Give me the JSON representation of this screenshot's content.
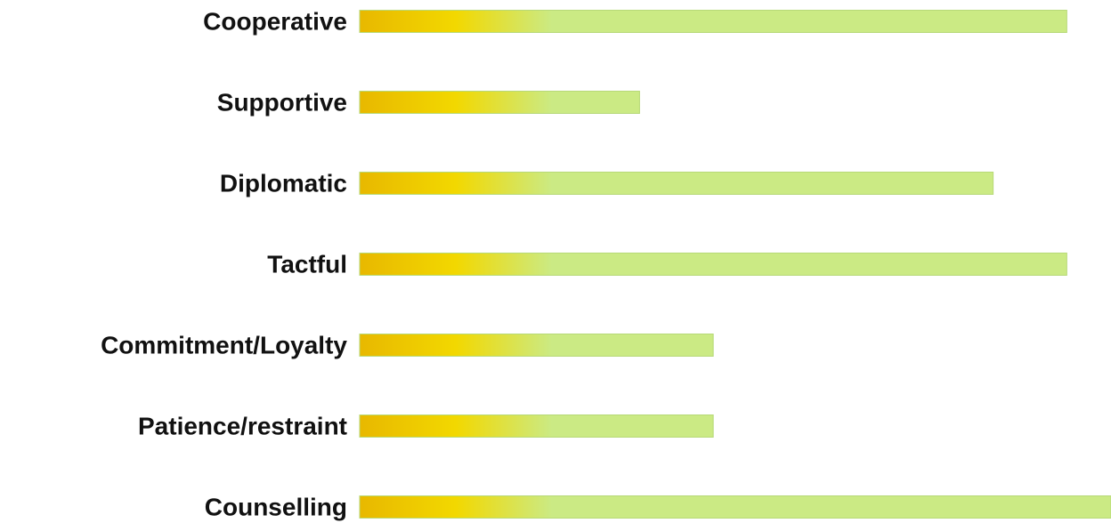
{
  "chart_data": {
    "type": "bar",
    "orientation": "horizontal",
    "categories": [
      "Cooperative",
      "Supportive",
      "Diplomatic",
      "Tactful",
      "Commitment/Loyalty",
      "Patience/restraint",
      "Counselling"
    ],
    "values": [
      4.8,
      1.9,
      4.3,
      4.8,
      2.4,
      2.4,
      5.1
    ],
    "xlim": [
      0,
      5.1
    ],
    "grid": false,
    "legend": "none",
    "colors": {
      "gradient_start": "#e8b800",
      "gradient_mid": "#f2d800",
      "gradient_end": "#cbea84",
      "bar_border": "#b7d978",
      "label": "#111111"
    }
  }
}
